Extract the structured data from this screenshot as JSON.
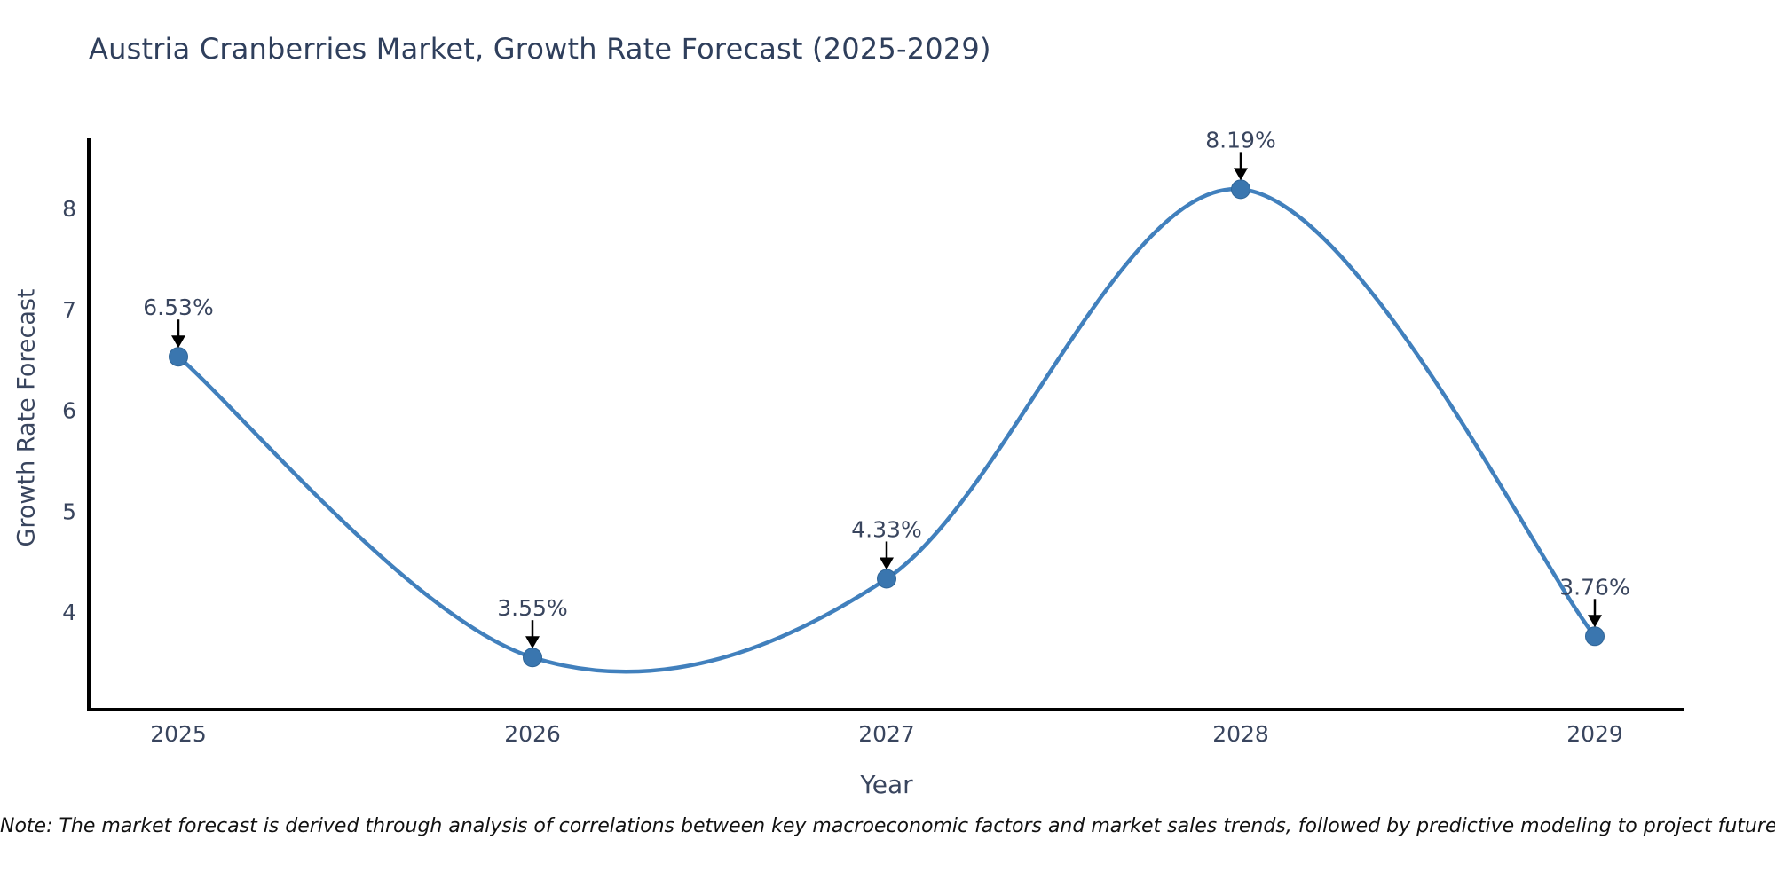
{
  "title": "Austria Cranberries Market, Growth Rate Forecast (2025-2029)",
  "note": "Note: The market forecast is derived through analysis of correlations between key macroeconomic factors and market sales trends, followed by predictive modeling to project future sales.",
  "colors": {
    "line": "#4180bd",
    "marker": "#3a76af",
    "marker_edge": "#2f6598",
    "axis": "#000000",
    "tick_text": "#39455e",
    "annotation_text": "#39455e",
    "annotation_arrow": "#000000"
  },
  "chart_data": {
    "type": "line",
    "title": "Austria Cranberries Market, Growth Rate Forecast (2025-2029)",
    "xlabel": "Year",
    "ylabel": "Growth Rate Forecast",
    "categories": [
      "2025",
      "2026",
      "2027",
      "2028",
      "2029"
    ],
    "values": [
      6.53,
      3.55,
      4.33,
      8.19,
      3.76
    ],
    "point_labels": [
      "6.53%",
      "3.55%",
      "4.33%",
      "8.19%",
      "3.76%"
    ],
    "yticks": [
      4,
      5,
      6,
      7,
      8
    ],
    "ylim": [
      3.02,
      8.68
    ],
    "grid": false,
    "legend_position": "none",
    "line_style": "smooth-spline",
    "marker": "circle",
    "annotations": "value labels with downward arrows above each point"
  }
}
